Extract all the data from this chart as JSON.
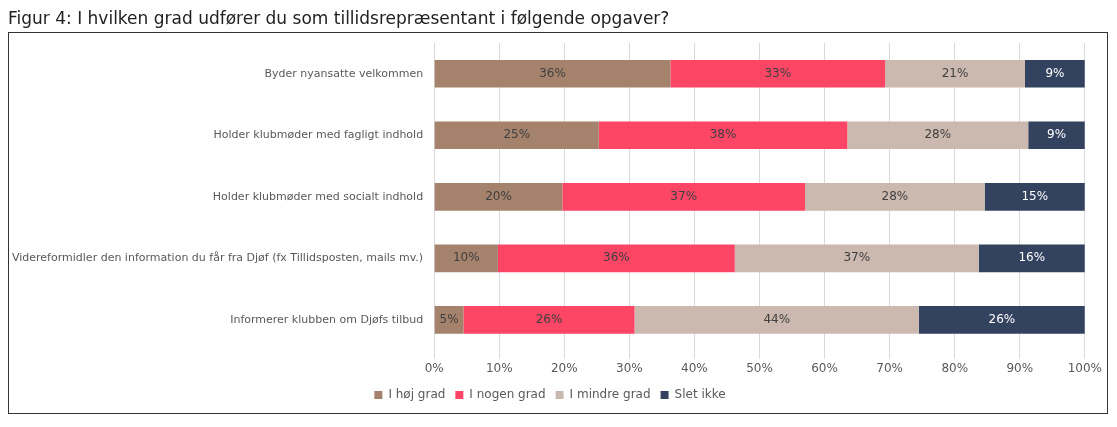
{
  "chart_data": {
    "type": "bar",
    "orientation": "horizontal",
    "stacked": true,
    "title": "Figur 4: I hvilken grad udfører du som tillidsrepræsentant i følgende opgaver?",
    "categories": [
      "Byder nyansatte velkommen",
      "Holder klubmøder med fagligt indhold",
      "Holder klubmøder med socialt indhold",
      "Videreformidler den information du får fra Djøf (fx Tillidsposten, mails mv.)",
      "Informerer klubben om Djøfs tilbud"
    ],
    "series": [
      {
        "name": "I høj grad",
        "color": "#a5826c",
        "values": [
          36.3,
          25.3,
          19.7,
          9.8,
          4.5
        ],
        "value_labels": [
          "36%",
          "25%",
          "20%",
          "10%",
          "5%"
        ]
      },
      {
        "name": "I nogen grad",
        "color": "#fd4566",
        "values": [
          33,
          38.2,
          37.3,
          36.4,
          26.3
        ],
        "value_labels": [
          "33%",
          "38%",
          "37%",
          "36%",
          "26%"
        ]
      },
      {
        "name": "I mindre grad",
        "color": "#cbb8ae",
        "values": [
          21.5,
          27.8,
          27.6,
          37.5,
          43.7
        ],
        "value_labels": [
          "21%",
          "28%",
          "28%",
          "37%",
          "44%"
        ]
      },
      {
        "name": "Slet ikke",
        "color": "#33425f",
        "values": [
          9.2,
          8.7,
          15.4,
          16.3,
          25.5
        ],
        "value_labels": [
          "9%",
          "9%",
          "15%",
          "16%",
          "26%"
        ]
      }
    ],
    "xlim": [
      0,
      100
    ],
    "xticks": [
      {
        "value": 0,
        "label": "0%"
      },
      {
        "value": 10,
        "label": "10%"
      },
      {
        "value": 20,
        "label": "20%"
      },
      {
        "value": 30,
        "label": "30%"
      },
      {
        "value": 40,
        "label": "40%"
      },
      {
        "value": 50,
        "label": "50%"
      },
      {
        "value": 60,
        "label": "60%"
      },
      {
        "value": 70,
        "label": "70%"
      },
      {
        "value": 80,
        "label": "80%"
      },
      {
        "value": 90,
        "label": "90%"
      },
      {
        "value": 100,
        "label": "100%"
      }
    ],
    "grid": "x",
    "legend": "bottom"
  }
}
